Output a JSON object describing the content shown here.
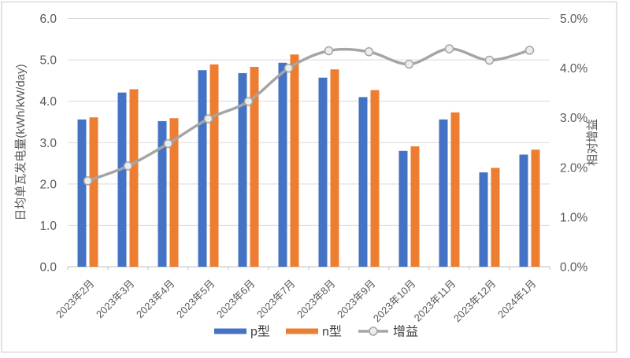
{
  "chart_data": {
    "type": "combo-bar-line",
    "title": "",
    "categories": [
      "2023年2月",
      "2023年3月",
      "2023年4月",
      "2023年5月",
      "2023年6月",
      "2023年7月",
      "2023年8月",
      "2023年9月",
      "2023年10月",
      "2023年11月",
      "2023年12月",
      "2024年1月"
    ],
    "series": [
      {
        "name": "p型",
        "type": "bar",
        "axis": "primary",
        "color": "#4472C4",
        "values": [
          3.56,
          4.21,
          3.52,
          4.75,
          4.68,
          4.93,
          4.57,
          4.1,
          2.8,
          3.56,
          2.28,
          2.71
        ]
      },
      {
        "name": "n型",
        "type": "bar",
        "axis": "primary",
        "color": "#ED7D31",
        "values": [
          3.61,
          4.29,
          3.59,
          4.89,
          4.83,
          5.13,
          4.77,
          4.27,
          2.91,
          3.73,
          2.39,
          2.83
        ]
      },
      {
        "name": "增益",
        "type": "line",
        "axis": "secondary",
        "color": "#A5A5A5",
        "smooth": true,
        "marker": {
          "shape": "circle",
          "fill": "#EDEDED",
          "stroke": "#A5A5A5"
        },
        "values_percent": [
          1.73,
          2.03,
          2.48,
          2.98,
          3.33,
          4.0,
          4.35,
          4.33,
          4.08,
          4.39,
          4.16,
          4.36
        ]
      }
    ],
    "left_axis": {
      "title": "日均单瓦发电量(kWh/kW/day)",
      "min": 0,
      "max": 6,
      "step": 1,
      "tick_labels": [
        "0.0",
        "1.0",
        "2.0",
        "3.0",
        "4.0",
        "5.0",
        "6.0"
      ]
    },
    "right_axis": {
      "title": "相对增益",
      "min": 0,
      "max": 5,
      "step": 1,
      "tick_labels": [
        "0.0%",
        "1.0%",
        "2.0%",
        "3.0%",
        "4.0%",
        "5.0%"
      ]
    },
    "legend": {
      "position": "bottom",
      "items": [
        "p型",
        "n型",
        "增益"
      ]
    },
    "grid": true
  },
  "colors": {
    "gridline": "#D9D9D9",
    "axis_line": "#BFBFBF",
    "tick_text": "#595959",
    "axis_title_text": "#595959",
    "frame_border": "#D9D9D9",
    "background": "#FFFFFF"
  }
}
